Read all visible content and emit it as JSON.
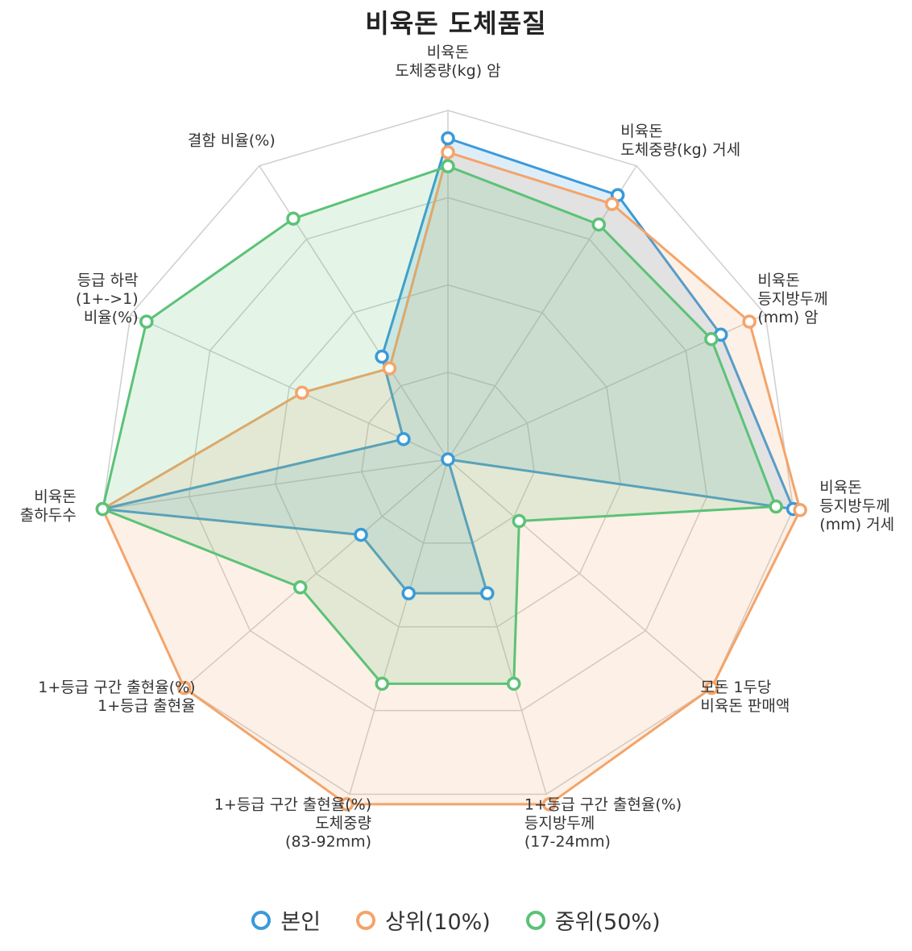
{
  "title": "비육돈 도체품질",
  "chart_data": {
    "type": "radar",
    "title": "비육돈 도체품질",
    "axes": [
      [
        "비육돈",
        "도체중량(kg) 암"
      ],
      [
        "비육돈",
        "도체중량(kg) 거세"
      ],
      [
        "비육돈",
        "등지방두께",
        "(mm) 암"
      ],
      [
        "비육돈",
        "등지방두께",
        "(mm) 거세"
      ],
      [
        "모돈 1두당",
        "비육돈 판매액"
      ],
      [
        "1+등급 구간 출현율(%)",
        "등지방두께",
        "(17-24mm)"
      ],
      [
        "1+등급 구간 출현율(%)",
        "도체중량",
        "(83-92mm)"
      ],
      [
        "1+등급 구간 출현율(%)",
        "1+등급 출현율"
      ],
      [
        "비육돈",
        "출하두수"
      ],
      [
        "등급 하락",
        "(1+->1)",
        "비율(%)"
      ],
      [
        "결함 비율(%)"
      ]
    ],
    "range": [
      0,
      100
    ],
    "grid_levels": 4,
    "series": [
      {
        "name": "본인",
        "color": "#3a9ad9",
        "values": [
          92,
          90,
          86,
          100,
          0,
          40,
          40,
          33,
          100,
          14,
          35
        ]
      },
      {
        "name": "상위(10%)",
        "color": "#f4a46a",
        "values": [
          88,
          87,
          95,
          102,
          100,
          103,
          103,
          100,
          100,
          46,
          31
        ]
      },
      {
        "name": "중위(50%)",
        "color": "#5cc277",
        "values": [
          84,
          80,
          83,
          95,
          27,
          67,
          67,
          56,
          100,
          95,
          82
        ]
      }
    ],
    "legend_position": "bottom"
  },
  "legend": [
    "본인",
    "상위(10%)",
    "중위(50%)"
  ]
}
